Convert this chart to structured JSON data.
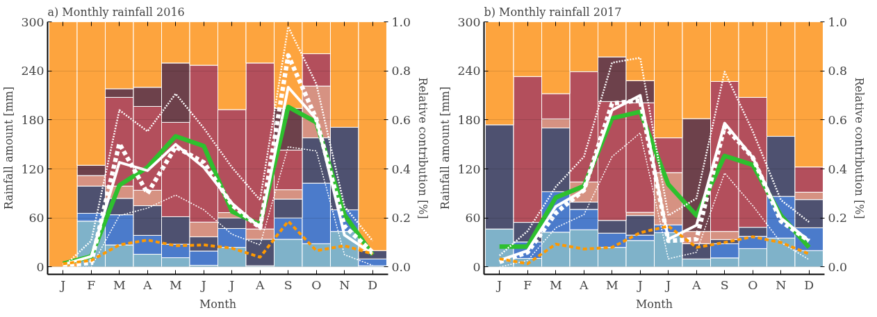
{
  "chart_data": [
    {
      "type": "bar",
      "stacked": true,
      "title": "a) Monthly rainfall 2016",
      "xlabel": "Month",
      "ylabel": "Rainfall amount [mm]",
      "y2label": "Relative contribution [%]",
      "categories": [
        "J",
        "F",
        "M",
        "A",
        "M",
        "J",
        "J",
        "A",
        "S",
        "O",
        "N",
        "D"
      ],
      "ylim": [
        -9,
        300
      ],
      "yticks": [
        0,
        60,
        120,
        180,
        240,
        300
      ],
      "y2lim": [
        -0.03,
        1.0
      ],
      "y2ticks": [
        {
          "value": 0,
          "label": "0.0"
        },
        {
          "value": 0.2,
          "label": "0.2"
        },
        {
          "value": 0.4,
          "label": "0.4"
        },
        {
          "value": 0.6,
          "label": "0.6"
        },
        {
          "value": 0.8,
          "label": "0.8"
        },
        {
          "value": 1,
          "label": "1.0"
        }
      ],
      "grid": "y",
      "series": [
        {
          "axis": "y2",
          "color": "#7fb2c9",
          "values": [
            null,
            0.187,
            0.09,
            0.052,
            0.038,
            0.007,
            0.08,
            0.005,
            0.113,
            0.095,
            0.145,
            0.005
          ]
        },
        {
          "axis": "y2",
          "color": "#4b7bcb",
          "values": [
            null,
            0.032,
            0.123,
            0.077,
            0.055,
            0.058,
            0.077,
            null,
            0.087,
            0.247,
            0.088,
            0.028
          ]
        },
        {
          "axis": "y2",
          "color": "#4e5170",
          "values": [
            null,
            0.111,
            0.067,
            0.121,
            0.112,
            0.058,
            0.043,
            0.108,
            0.077,
            0.185,
            0.337,
            0.034
          ]
        },
        {
          "axis": "y2",
          "color": "#d69282",
          "values": [
            null,
            0.043,
            0.05,
            0.063,
            null,
            0.06,
            0.022,
            0.042,
            0.038,
            0.211,
            null,
            null
          ]
        },
        {
          "axis": "y2",
          "color": "#b34f5c",
          "values": [
            null,
            null,
            0.362,
            0.342,
            0.385,
            0.64,
            0.42,
            0.677,
            0.162,
            0.132,
            null,
            null
          ]
        },
        {
          "axis": "y2",
          "color": "#6d414b",
          "values": [
            null,
            0.042,
            0.035,
            0.078,
            0.242,
            null,
            null,
            null,
            0.17,
            null,
            null,
            null
          ]
        },
        {
          "axis": "y2",
          "color": "#fda43e",
          "values": [
            1.0,
            0.585,
            0.273,
            0.267,
            0.168,
            0.177,
            0.358,
            0.168,
            0.353,
            0.13,
            0.43,
            0.933
          ]
        },
        {
          "type": "line",
          "axis": "y",
          "color": "#2ec02e",
          "line_style": "solid",
          "values": [
            4,
            13,
            100,
            122,
            160,
            148,
            68,
            52,
            196,
            177,
            64,
            15
          ]
        },
        {
          "type": "line",
          "axis": "y",
          "color": "#ffffff",
          "line_style": "solid",
          "values": [
            3,
            13,
            128,
            118,
            150,
            122,
            78,
            48,
            220,
            181,
            39,
            16
          ]
        },
        {
          "type": "line",
          "axis": "y",
          "color": "#ffffff",
          "line_style": "dashed",
          "values": [
            2,
            5,
            151,
            90,
            147,
            128,
            76,
            48,
            259,
            181,
            50,
            18
          ]
        },
        {
          "type": "line",
          "axis": "y",
          "color": "#ffffff",
          "line_style": "dotted",
          "values": [
            0,
            32,
            192,
            166,
            212,
            170,
            122,
            82,
            294,
            224,
            74,
            32
          ]
        },
        {
          "type": "line",
          "axis": "y",
          "color": "#ffffff",
          "line_style": "dotted",
          "values": [
            0,
            0,
            63,
            72,
            88,
            70,
            40,
            27,
            147,
            142,
            15,
            2
          ]
        },
        {
          "type": "line",
          "axis": "y",
          "color": "#ff9900",
          "line_style": "dashed",
          "values": [
            4,
            8,
            27,
            33,
            26,
            27,
            23,
            12,
            56,
            20,
            26,
            16
          ]
        }
      ]
    },
    {
      "type": "bar",
      "stacked": true,
      "title": "b) Monthly rainfall 2017",
      "xlabel": "Month",
      "ylabel": "Rainfall amount [mm]",
      "y2label": "Relative contribution [%]",
      "categories": [
        "J",
        "F",
        "M",
        "A",
        "M",
        "J",
        "J",
        "A",
        "S",
        "O",
        "N",
        "D"
      ],
      "ylim": [
        -9,
        300
      ],
      "yticks": [
        0,
        60,
        120,
        180,
        240,
        300
      ],
      "y2lim": [
        -0.03,
        1.0
      ],
      "y2ticks": [
        {
          "value": 0,
          "label": "0.0"
        },
        {
          "value": 0.2,
          "label": "0.2"
        },
        {
          "value": 0.4,
          "label": "0.4"
        },
        {
          "value": 0.6,
          "label": "0.6"
        },
        {
          "value": 0.8,
          "label": "0.8"
        },
        {
          "value": 1,
          "label": "1.0"
        }
      ],
      "grid": "y",
      "series": [
        {
          "axis": "y2",
          "color": "#7fb2c9",
          "values": [
            0.155,
            0.035,
            0.142,
            0.152,
            0.08,
            0.108,
            0.14,
            0.033,
            0.037,
            0.075,
            0.118,
            0.067
          ]
        },
        {
          "axis": "y2",
          "color": "#4b7bcb",
          "values": [
            null,
            0.067,
            0.165,
            0.083,
            0.058,
            0.022,
            0.032,
            null,
            0.058,
            0.05,
            0.17,
            0.093
          ]
        },
        {
          "axis": "y2",
          "color": "#4e5170",
          "values": [
            0.425,
            0.08,
            0.26,
            0.03,
            0.052,
            0.08,
            null,
            0.062,
            0.017,
            0.037,
            0.245,
            0.115
          ]
        },
        {
          "axis": "y2",
          "color": "#d69282",
          "values": [
            null,
            null,
            0.037,
            0.082,
            null,
            0.013,
            0.213,
            0.05,
            0.033,
            null,
            null,
            0.03
          ]
        },
        {
          "axis": "y2",
          "color": "#b34f5c",
          "values": [
            null,
            0.595,
            0.103,
            0.45,
            0.485,
            0.447,
            0.142,
            null,
            0.612,
            0.53,
            null,
            0.103
          ]
        },
        {
          "axis": "y2",
          "color": "#6d414b",
          "values": [
            null,
            null,
            null,
            null,
            0.182,
            0.09,
            null,
            0.46,
            null,
            null,
            null,
            null
          ]
        },
        {
          "axis": "y2",
          "color": "#fda43e",
          "values": [
            0.42,
            0.223,
            0.293,
            0.203,
            0.143,
            0.24,
            0.473,
            0.395,
            0.243,
            0.308,
            0.467,
            0.592
          ]
        },
        {
          "type": "line",
          "axis": "y",
          "color": "#2ec02e",
          "line_style": "solid",
          "values": [
            25,
            25,
            85,
            99,
            182,
            190,
            101,
            63,
            136,
            125,
            63,
            24
          ]
        },
        {
          "type": "line",
          "axis": "y",
          "color": "#ffffff",
          "line_style": "solid",
          "values": [
            8,
            20,
            74,
            94,
            192,
            210,
            34,
            51,
            176,
            134,
            60,
            32
          ]
        },
        {
          "type": "line",
          "axis": "y",
          "color": "#ffffff",
          "line_style": "dashed",
          "values": [
            6,
            18,
            66,
            94,
            200,
            204,
            32,
            34,
            172,
            134,
            56,
            32
          ]
        },
        {
          "type": "line",
          "axis": "y",
          "color": "#ffffff",
          "line_style": "dotted",
          "values": [
            14,
            44,
            98,
            135,
            250,
            256,
            63,
            84,
            239,
            166,
            82,
            55
          ]
        },
        {
          "type": "line",
          "axis": "y",
          "color": "#ffffff",
          "line_style": "dotted",
          "values": [
            0,
            8,
            48,
            64,
            135,
            164,
            10,
            18,
            115,
            75,
            30,
            9
          ]
        },
        {
          "type": "line",
          "axis": "y",
          "color": "#ff9900",
          "line_style": "dashed",
          "values": [
            10,
            4,
            28,
            22,
            24,
            42,
            50,
            24,
            30,
            37,
            30,
            16
          ]
        }
      ]
    }
  ]
}
